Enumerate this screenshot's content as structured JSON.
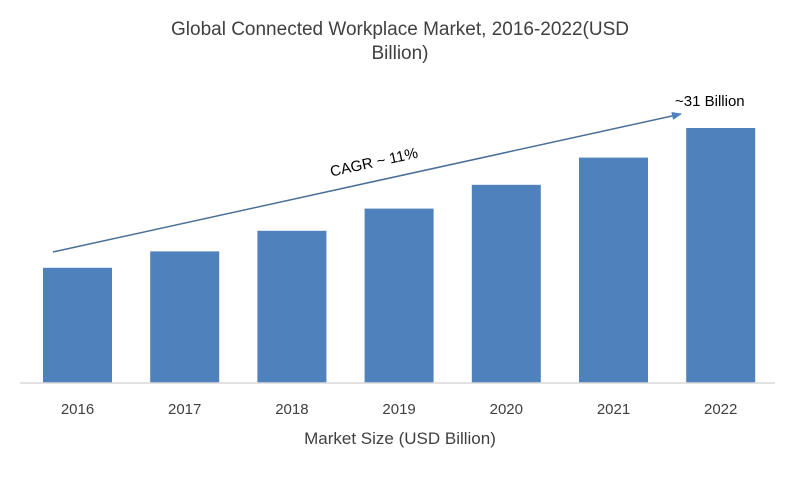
{
  "chart_data": {
    "type": "bar",
    "title_line1": "Global Connected Workplace Market, 2016-2022(USD",
    "title_line2": "Billion)",
    "title": "Global Connected Workplace Market, 2016-2022(USD Billion)",
    "xlabel": "Market Size (USD Billion)",
    "ylabel": "",
    "categories": [
      "2016",
      "2017",
      "2018",
      "2019",
      "2020",
      "2021",
      "2022"
    ],
    "values": [
      14.0,
      16.0,
      18.5,
      21.2,
      24.1,
      27.4,
      31.0
    ],
    "ylim": [
      0,
      31
    ],
    "grid": false,
    "legend": null,
    "bar_color": "#4F81BD",
    "annotations": {
      "cagr": "CAGR ~ 11%",
      "end_value": "~31 Billion"
    }
  }
}
